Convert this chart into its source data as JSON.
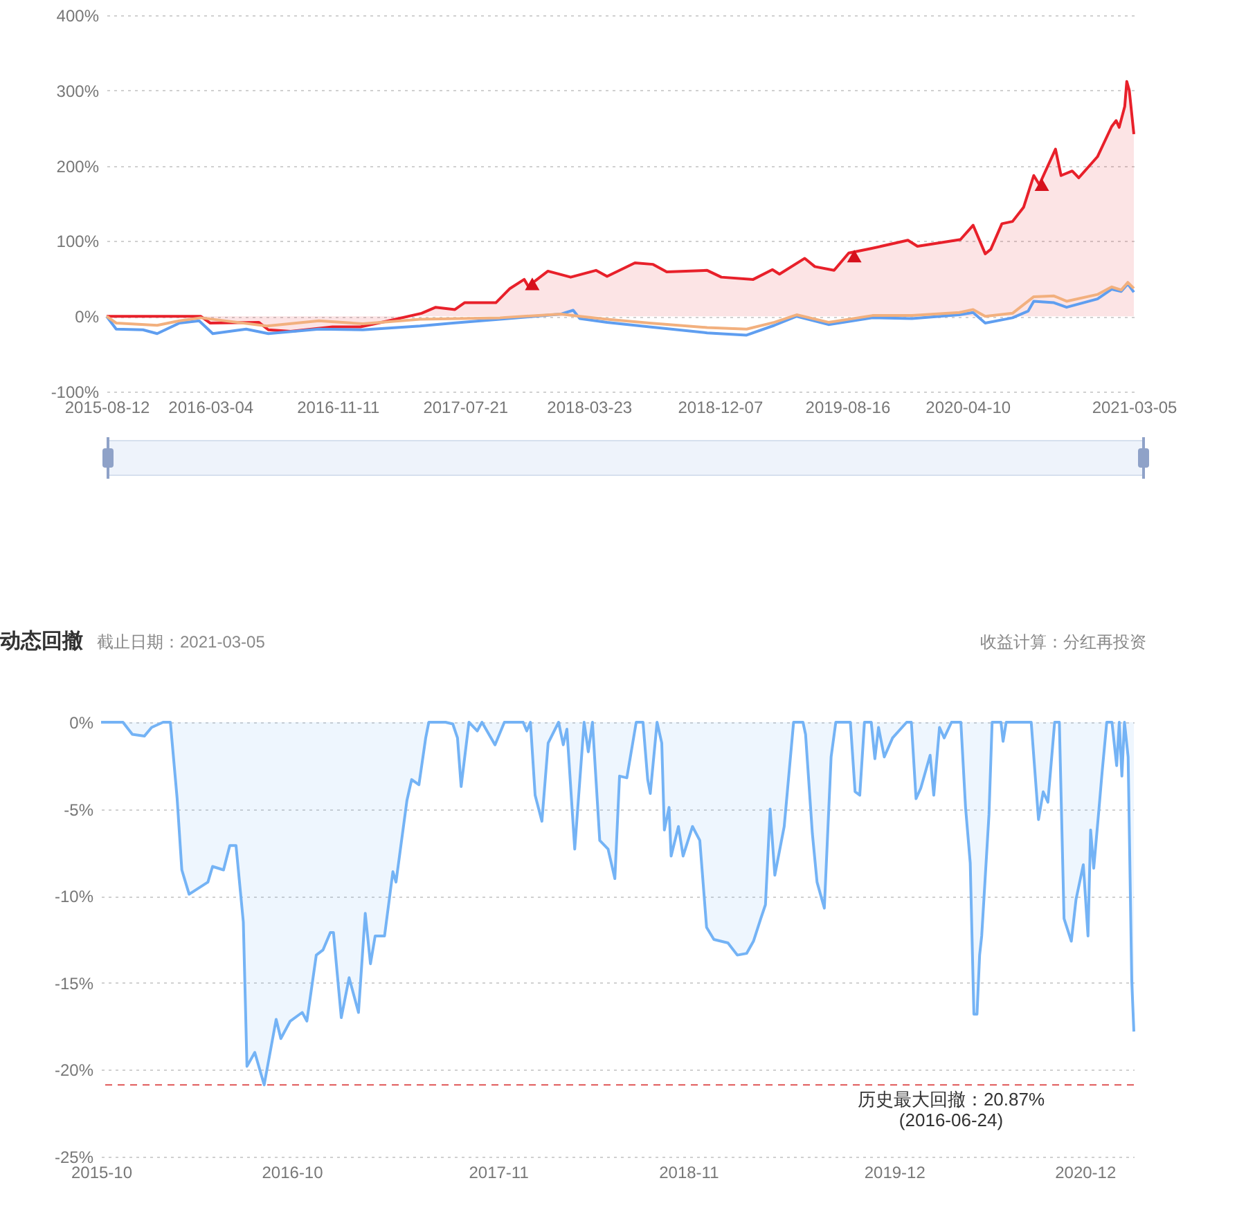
{
  "chart_data": [
    {
      "type": "line",
      "grid": "y",
      "xlim": [
        "2015-08-12",
        "2021-03-05"
      ],
      "xticks": [
        "2015-08-12",
        "2016-03-04",
        "2016-11-11",
        "2017-07-21",
        "2018-03-23",
        "2018-12-07",
        "2019-08-16",
        "2020-04-10",
        "2021-03-05"
      ],
      "ylim": [
        -100,
        400
      ],
      "yticks": [
        {
          "value": -100,
          "label": "-100%"
        },
        {
          "value": 0,
          "label": "0%"
        },
        {
          "value": 100,
          "label": "100%"
        },
        {
          "value": 200,
          "label": "200%"
        },
        {
          "value": 300,
          "label": "300%"
        },
        {
          "value": 400,
          "label": "400%"
        }
      ],
      "series": [
        {
          "type": "area",
          "color": "#e8202a",
          "x": [
            "2015-08-12",
            "2016-02-14",
            "2016-03-04",
            "2016-06-08",
            "2016-06-27",
            "2016-08-10",
            "2016-11-01",
            "2016-12-26",
            "2017-02-20",
            "2017-04-26",
            "2017-05-24",
            "2017-07-01",
            "2017-07-20",
            "2017-09-20",
            "2017-10-18",
            "2017-11-15",
            "2017-11-23",
            "2018-01-01",
            "2018-02-15",
            "2018-04-06",
            "2018-04-28",
            "2018-06-22",
            "2018-07-28",
            "2018-08-24",
            "2018-11-12",
            "2018-12-10",
            "2019-02-11",
            "2019-03-21",
            "2019-04-04",
            "2019-05-24",
            "2019-06-13",
            "2019-07-21",
            "2019-08-19",
            "2019-10-02",
            "2019-12-14",
            "2020-01-02",
            "2020-03-27",
            "2020-04-21",
            "2020-05-15",
            "2020-05-26",
            "2020-06-17",
            "2020-07-08",
            "2020-07-30",
            "2020-08-19",
            "2020-08-30",
            "2020-10-01",
            "2020-10-12",
            "2020-11-03",
            "2020-11-16",
            "2020-12-23",
            "2021-01-20",
            "2021-01-29",
            "2021-02-04",
            "2021-02-15",
            "2021-02-19",
            "2021-02-24",
            "2021-03-05"
          ],
          "values": [
            0,
            0,
            -9,
            -8,
            -18,
            -20,
            -14,
            -14,
            -6,
            4,
            12,
            9,
            18,
            18,
            37,
            49,
            40,
            60,
            52,
            61,
            53,
            71,
            69,
            59,
            61,
            52,
            49,
            62,
            56,
            77,
            66,
            61,
            84,
            90,
            101,
            93,
            102,
            121,
            83,
            89,
            123,
            126,
            145,
            187,
            175,
            222,
            187,
            193,
            184,
            212,
            252,
            260,
            251,
            279,
            312,
            300,
            242
          ]
        },
        {
          "type": "line",
          "color": "#5f9ef0",
          "x": [
            "2015-08-12",
            "2015-08-31",
            "2015-10-23",
            "2015-11-20",
            "2016-01-03",
            "2016-02-11",
            "2016-03-09",
            "2016-05-14",
            "2016-06-27",
            "2016-10-05",
            "2016-12-31",
            "2017-04-23",
            "2017-06-27",
            "2017-09-28",
            "2018-01-27",
            "2018-02-20",
            "2018-03-05",
            "2018-04-28",
            "2018-07-21",
            "2018-11-12",
            "2019-01-29",
            "2019-03-25",
            "2019-05-08",
            "2019-07-10",
            "2019-10-05",
            "2019-12-22",
            "2020-03-25",
            "2020-04-21",
            "2020-05-15",
            "2020-07-08",
            "2020-08-08",
            "2020-08-19",
            "2020-09-28",
            "2020-10-23",
            "2020-12-23",
            "2021-01-20",
            "2021-02-08",
            "2021-02-21",
            "2021-03-05"
          ],
          "values": [
            0,
            -17,
            -18,
            -23,
            -9,
            -6,
            -23,
            -17,
            -23,
            -17,
            -18,
            -13,
            -9,
            -4,
            3,
            8,
            -3,
            -8,
            -14,
            -22,
            -25,
            -12,
            0,
            -11,
            -2,
            -3,
            2,
            5,
            -9,
            -2,
            7,
            20,
            18,
            12,
            23,
            36,
            33,
            43,
            32
          ]
        },
        {
          "type": "line",
          "color": "#f2b07e",
          "x": [
            "2015-08-12",
            "2015-08-31",
            "2015-11-20",
            "2016-01-03",
            "2016-02-14",
            "2016-06-24",
            "2016-10-05",
            "2016-12-31",
            "2017-04-23",
            "2017-09-28",
            "2018-01-27",
            "2018-03-05",
            "2018-04-28",
            "2018-07-21",
            "2018-11-12",
            "2019-01-29",
            "2019-03-25",
            "2019-05-08",
            "2019-07-10",
            "2019-10-05",
            "2019-12-22",
            "2020-03-25",
            "2020-04-21",
            "2020-05-15",
            "2020-07-08",
            "2020-08-19",
            "2020-09-28",
            "2020-10-23",
            "2020-12-23",
            "2021-01-20",
            "2021-02-08",
            "2021-02-21",
            "2021-03-05"
          ],
          "values": [
            0,
            -9,
            -12,
            -6,
            -2,
            -13,
            -6,
            -10,
            -4,
            -2,
            3,
            0,
            -4,
            -9,
            -15,
            -17,
            -8,
            2,
            -8,
            1,
            1,
            5,
            9,
            0,
            4,
            26,
            27,
            20,
            29,
            39,
            35,
            45,
            37
          ]
        },
        {
          "type": "scatter",
          "marker": "triangle",
          "color": "#d6101c",
          "x": [
            "2017-12-01",
            "2019-08-30",
            "2020-09-04"
          ],
          "values": [
            43,
            80,
            175
          ]
        }
      ]
    },
    {
      "type": "area",
      "title": "动态回撤",
      "subtitle": "截止日期：2021-03-05",
      "annotations": [
        "收益计算：分红再投资"
      ],
      "grid": "y",
      "xlim": [
        "2015-10-01",
        "2021-03-05"
      ],
      "xticks": [
        "2015-10",
        "2016-10",
        "2017-11",
        "2018-11",
        "2019-12",
        "2020-12"
      ],
      "ylim": [
        -25,
        0
      ],
      "yticks": [
        {
          "value": -25,
          "label": "-25%"
        },
        {
          "value": -20,
          "label": "-20%"
        },
        {
          "value": -15,
          "label": "-15%"
        },
        {
          "value": -10,
          "label": "-10%"
        },
        {
          "value": -5,
          "label": "-5%"
        },
        {
          "value": 0,
          "label": "0%"
        }
      ],
      "ref_lines": [
        {
          "axis": "y",
          "value": -20.87,
          "label": "历史最大回撤：20.87%\n(2016-06-24)",
          "color": "#e05555",
          "line_style": "dashed"
        }
      ],
      "x": [
        "2015-10-01",
        "2015-11-12",
        "2015-11-30",
        "2015-12-23",
        "2016-01-06",
        "2016-01-28",
        "2016-02-11",
        "2016-02-24",
        "2016-03-04",
        "2016-03-18",
        "2016-04-23",
        "2016-05-02",
        "2016-05-23",
        "2016-06-04",
        "2016-06-16",
        "2016-06-30",
        "2016-07-07",
        "2016-07-22",
        "2016-08-09",
        "2016-09-01",
        "2016-09-10",
        "2016-09-28",
        "2016-10-21",
        "2016-10-30",
        "2016-11-17",
        "2016-11-30",
        "2016-12-14",
        "2016-12-20",
        "2017-01-04",
        "2017-01-19",
        "2017-02-06",
        "2017-02-19",
        "2017-03-01",
        "2017-03-10",
        "2017-03-28",
        "2017-04-13",
        "2017-04-19",
        "2017-05-10",
        "2017-05-19",
        "2017-06-02",
        "2017-06-15",
        "2017-06-21",
        "2017-07-23",
        "2017-08-06",
        "2017-08-15",
        "2017-08-22",
        "2017-09-06",
        "2017-09-22",
        "2017-10-01",
        "2017-10-26",
        "2017-11-13",
        "2017-12-19",
        "2017-12-26",
        "2018-01-02",
        "2018-01-11",
        "2018-01-24",
        "2018-02-05",
        "2018-02-25",
        "2018-03-06",
        "2018-03-13",
        "2018-03-28",
        "2018-04-15",
        "2018-04-23",
        "2018-05-01",
        "2018-05-15",
        "2018-05-31",
        "2018-06-13",
        "2018-06-22",
        "2018-07-06",
        "2018-07-24",
        "2018-08-06",
        "2018-08-15",
        "2018-08-20",
        "2018-09-02",
        "2018-09-11",
        "2018-09-16",
        "2018-09-25",
        "2018-09-29",
        "2018-10-13",
        "2018-10-22",
        "2018-11-09",
        "2018-11-23",
        "2018-12-06",
        "2018-12-20",
        "2019-01-16",
        "2019-02-03",
        "2019-02-21",
        "2019-03-06",
        "2019-03-20",
        "2019-03-29",
        "2019-04-07",
        "2019-04-16",
        "2019-05-04",
        "2019-05-22",
        "2019-06-09",
        "2019-06-14",
        "2019-06-27",
        "2019-07-06",
        "2019-07-20",
        "2019-08-02",
        "2019-08-11",
        "2019-09-08",
        "2019-09-17",
        "2019-09-26",
        "2019-10-05",
        "2019-10-18",
        "2019-10-25",
        "2019-11-01",
        "2019-11-12",
        "2019-11-28",
        "2019-12-25",
        "2020-01-03",
        "2020-01-12",
        "2020-01-21",
        "2020-02-08",
        "2020-02-15",
        "2020-02-26",
        "2020-03-06",
        "2020-03-20",
        "2020-04-07",
        "2020-04-16",
        "2020-04-25",
        "2020-05-02",
        "2020-05-08",
        "2020-05-13",
        "2020-05-17",
        "2020-05-31",
        "2020-06-06",
        "2020-06-23",
        "2020-06-27",
        "2020-07-03",
        "2020-08-20",
        "2020-09-03",
        "2020-09-12",
        "2020-09-21",
        "2020-10-04",
        "2020-10-13",
        "2020-10-22",
        "2020-11-05",
        "2020-11-14",
        "2020-11-28",
        "2020-12-07",
        "2020-12-12",
        "2020-12-18",
        "2020-12-28",
        "2021-01-03",
        "2021-01-12",
        "2021-01-22",
        "2021-01-31",
        "2021-02-05",
        "2021-02-10",
        "2021-02-15",
        "2021-02-22",
        "2021-03-01",
        "2021-03-05"
      ],
      "series": [
        {
          "color": "#74b3f5",
          "values": [
            0,
            0,
            -0.7,
            -0.8,
            -0.3,
            0,
            0,
            -4.4,
            -8.5,
            -9.9,
            -9.2,
            -8.3,
            -8.5,
            -7.1,
            -7.1,
            -11.5,
            -19.8,
            -19.0,
            -20.87,
            -17.1,
            -18.2,
            -17.2,
            -16.7,
            -17.2,
            -13.4,
            -13.1,
            -12.1,
            -12.1,
            -17.0,
            -14.7,
            -16.7,
            -11.0,
            -13.9,
            -12.3,
            -12.3,
            -8.6,
            -9.2,
            -4.5,
            -3.3,
            -3.6,
            -0.9,
            0,
            0,
            -0.1,
            -0.9,
            -3.7,
            0,
            -0.5,
            0,
            -1.3,
            0,
            0,
            -0.5,
            0,
            -4.2,
            -5.7,
            -1.2,
            0,
            -1.3,
            -0.4,
            -7.3,
            0,
            -1.7,
            0,
            -6.8,
            -7.3,
            -9.0,
            -3.1,
            -3.2,
            0,
            0,
            -3.3,
            -4.1,
            0,
            -1.2,
            -6.2,
            -4.9,
            -7.7,
            -6.0,
            -7.7,
            -6.0,
            -6.8,
            -11.8,
            -12.5,
            -12.7,
            -13.4,
            -13.3,
            -12.6,
            -11.3,
            -10.5,
            -5.0,
            -8.8,
            -6.0,
            0,
            0,
            -0.7,
            -6.4,
            -9.2,
            -10.7,
            -2.0,
            0,
            0,
            -4.0,
            -4.2,
            0,
            0,
            -2.1,
            -0.3,
            -2.0,
            -0.9,
            0,
            0,
            -4.4,
            -3.8,
            -1.9,
            -4.2,
            -0.3,
            -0.9,
            0,
            0,
            -4.9,
            -8.1,
            -16.8,
            -16.8,
            -13.4,
            -12.3,
            -5.3,
            0,
            0,
            -1.1,
            0,
            0,
            -5.6,
            -4.0,
            -4.6,
            0,
            0,
            -11.3,
            -12.6,
            -10.2,
            -8.2,
            -12.3,
            -6.2,
            -8.4,
            -5.0,
            -2.9,
            0,
            0,
            -2.5,
            0,
            -3.1,
            0,
            -2.0,
            -14.9,
            -17.8
          ]
        }
      ]
    }
  ]
}
